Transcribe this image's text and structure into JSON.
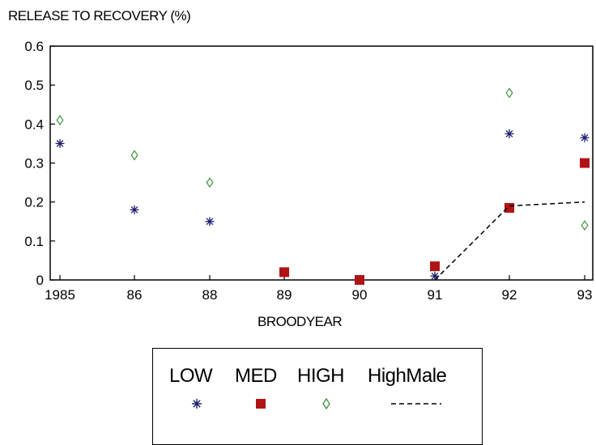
{
  "chart_data": {
    "type": "scatter",
    "ylabel": "RELEASE TO RECOVERY  (%)",
    "xlabel": "BROODYEAR",
    "categories": [
      "1985",
      "86",
      "88",
      "89",
      "90",
      "91",
      "92",
      "93"
    ],
    "ylim": [
      0,
      0.6
    ],
    "yticks": [
      "0",
      "0.1",
      "0.2",
      "0.3",
      "0.4",
      "0.5",
      "0.6"
    ],
    "series": [
      {
        "name": "LOW",
        "marker": "asterisk",
        "color": "#1a1a6e",
        "values": [
          0.35,
          0.18,
          0.15,
          0.02,
          null,
          0.01,
          0.375,
          0.365
        ]
      },
      {
        "name": "MED",
        "marker": "square",
        "color": "#b01414",
        "values": [
          null,
          null,
          null,
          0.02,
          0.0,
          0.035,
          0.185,
          0.3
        ]
      },
      {
        "name": "HIGH",
        "marker": "diamond",
        "color": "#2e8b2e",
        "values": [
          0.41,
          0.32,
          0.25,
          null,
          null,
          null,
          0.48,
          0.14
        ]
      },
      {
        "name": "HighMale",
        "marker": "dashed-line",
        "color": "#000000",
        "values": [
          null,
          null,
          null,
          null,
          null,
          0.0,
          0.19,
          0.2
        ]
      }
    ],
    "legend_position": "bottom-center",
    "grid": false
  }
}
